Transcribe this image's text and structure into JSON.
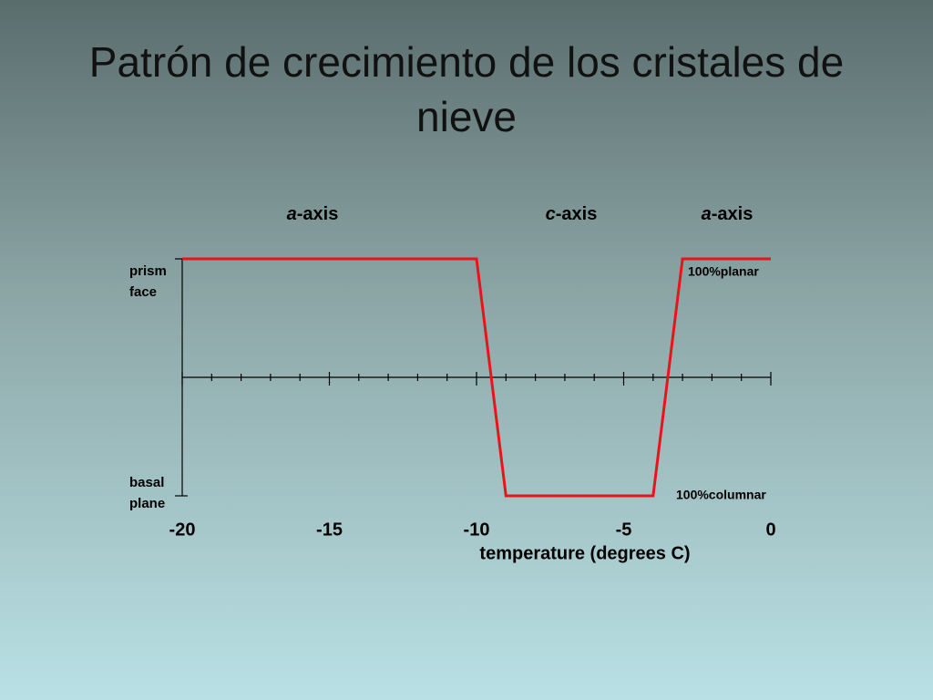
{
  "chart_data": {
    "type": "line",
    "title": "Patrón de crecimiento de los cristales de nieve",
    "axis_regions": [
      {
        "italic": "a",
        "text": "-axis"
      },
      {
        "italic": "c",
        "text": "-axis"
      },
      {
        "italic": "a",
        "text": "-axis"
      }
    ],
    "y_top_label": [
      "prism",
      "face"
    ],
    "y_bottom_label": [
      "basal",
      "plane"
    ],
    "top_label": "100%planar",
    "bottom_label": "100%columnar",
    "xlabel": "temperature (degrees C)",
    "x": [
      -20,
      -10,
      -9,
      -4,
      -3,
      0
    ],
    "values": [
      100,
      100,
      -100,
      -100,
      100,
      100
    ],
    "color": "#e8141a",
    "xlim": [
      -20,
      0
    ],
    "xticks": [
      -20,
      -15,
      -10,
      -5,
      0
    ],
    "xminor_ticks": [
      -19,
      -18,
      -17,
      -16,
      -14,
      -13,
      -12,
      -11,
      -9,
      -8,
      -7,
      -6,
      -4,
      -3,
      -2,
      -1
    ],
    "ylim": [
      -100,
      100
    ]
  }
}
